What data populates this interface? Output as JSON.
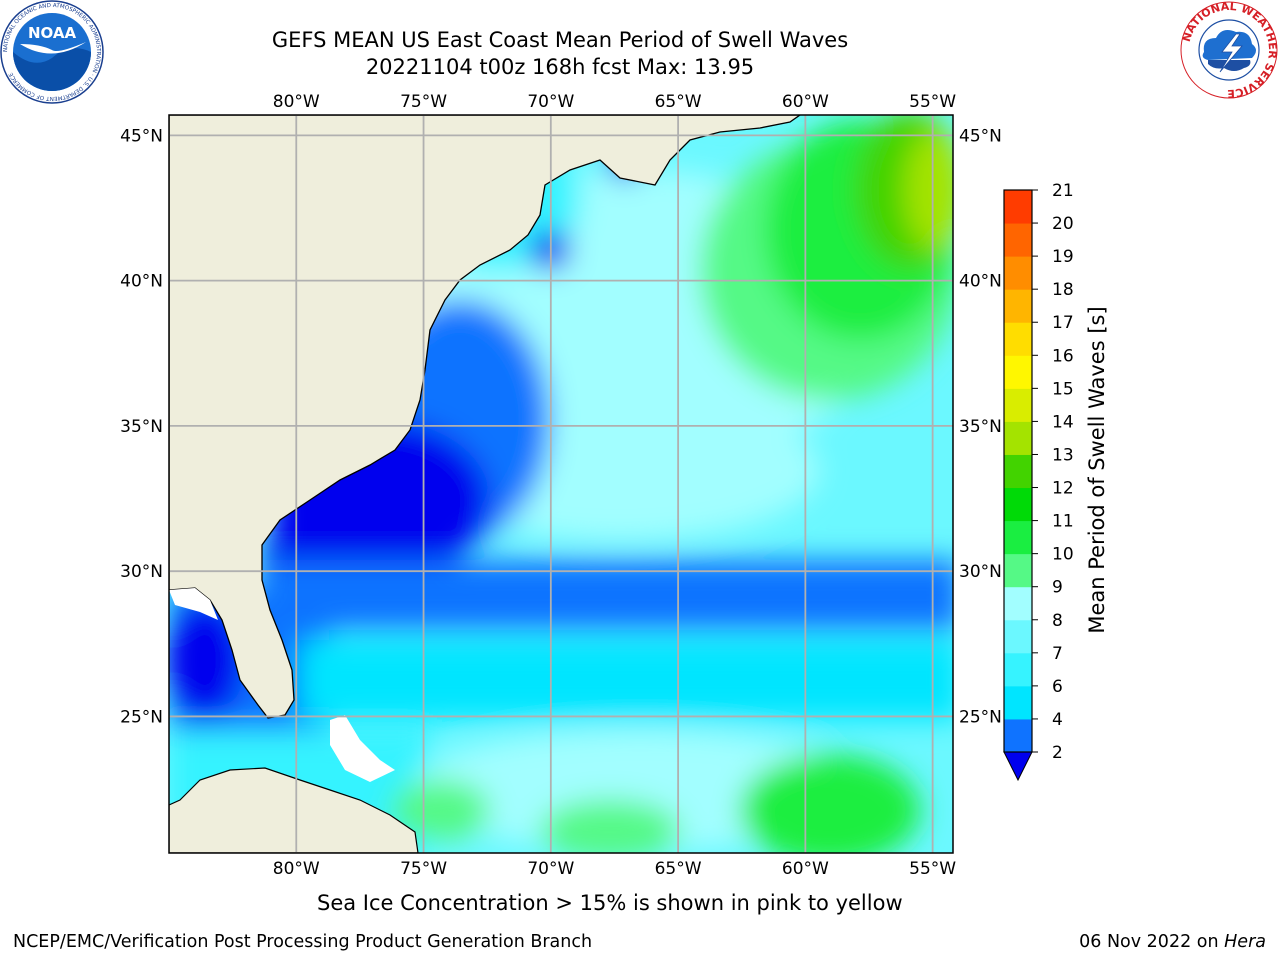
{
  "title": {
    "line1": "GEFS MEAN US East Coast Mean Period of Swell Waves",
    "line2": "20221104 t00z 168h fcst   Max: 13.95"
  },
  "map": {
    "lon_range": [
      -85,
      -54.2
    ],
    "lat_range": [
      20.3,
      45.7
    ],
    "lon_ticks": [
      -80,
      -75,
      -70,
      -65,
      -60,
      -55
    ],
    "lon_tick_labels": [
      "80°W",
      "75°W",
      "70°W",
      "65°W",
      "60°W",
      "55°W"
    ],
    "lat_ticks": [
      45,
      40,
      35,
      30,
      25
    ],
    "lat_tick_labels": [
      "45°N",
      "40°N",
      "35°N",
      "30°N",
      "25°N"
    ],
    "land_color": "#efeedc",
    "grid": true
  },
  "colorbar": {
    "label": "Mean Period of Swell Waves [s]",
    "levels": [
      2,
      4,
      6,
      7,
      8,
      9,
      10,
      11,
      12,
      13,
      14,
      15,
      16,
      17,
      18,
      19,
      20,
      21
    ],
    "tick_labels": [
      "2",
      "4",
      "6",
      "7",
      "8",
      "9",
      "10",
      "11",
      "12",
      "13",
      "14",
      "15",
      "16",
      "17",
      "18",
      "19",
      "20",
      "21"
    ],
    "colors": [
      "#0f73ff",
      "#00e5ff",
      "#36f3ff",
      "#6bf8ff",
      "#a2feff",
      "#55f986",
      "#1aee41",
      "#00da07",
      "#42d300",
      "#a4e300",
      "#d9ed00",
      "#fff700",
      "#ffdd00",
      "#ffb500",
      "#ff8d00",
      "#ff6500",
      "#ff3c00",
      "#ff0000"
    ],
    "under_color": "#0000ee"
  },
  "caption": "Sea Ice Concentration > 15% is shown in pink to yellow",
  "footer": {
    "left": "NCEP/EMC/Verification Post Processing Product Generation Branch",
    "date": "06 Nov 2022 on ",
    "host": "Hera"
  },
  "logos": {
    "noaa": "NOAA",
    "noaa_ring": "NATIONAL OCEANIC AND ATMOSPHERIC ADMINISTRATION · U.S. DEPARTMENT OF COMMERCE",
    "nws_ring": "NATIONAL WEATHER SERVICE"
  }
}
